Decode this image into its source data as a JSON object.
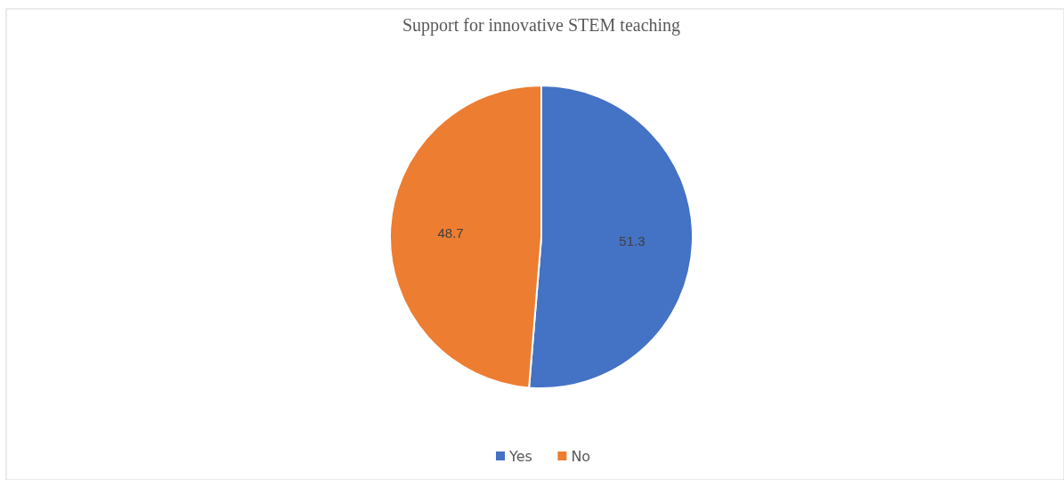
{
  "chart_data": {
    "type": "pie",
    "title": "Support for innovative STEM teaching",
    "categories": [
      "Yes",
      "No"
    ],
    "values": [
      51.3,
      48.7
    ],
    "colors": [
      "#4472c4",
      "#ed7d31"
    ],
    "data_labels": true,
    "legend": "bottom"
  }
}
